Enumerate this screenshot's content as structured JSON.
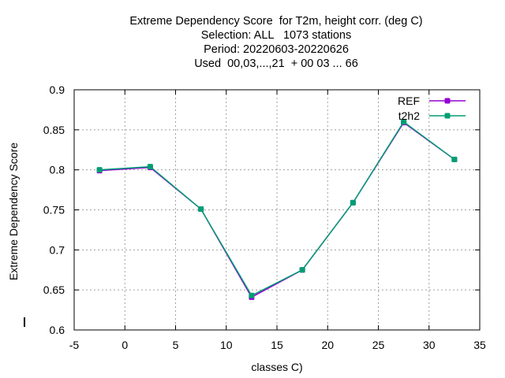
{
  "title_lines": [
    "Extreme Dependency Score  for T2m, height corr. (deg C)",
    "Selection: ALL   1073 stations",
    "Period: 20220603-20220626",
    "Used  00,03,...,21  + 00 03 ... 66"
  ],
  "chart_data": {
    "type": "line",
    "xlabel": "classes C)",
    "ylabel": "Extreme Dependency Score",
    "xlim": [
      -5,
      35
    ],
    "ylim": [
      0.6,
      0.9
    ],
    "xticks": [
      -5,
      0,
      5,
      10,
      15,
      20,
      25,
      30,
      35
    ],
    "yticks": [
      0.6,
      0.65,
      0.7,
      0.75,
      0.8,
      0.85,
      0.9
    ],
    "xtick_labels": [
      "-5",
      "0",
      "5",
      "10",
      "15",
      "20",
      "25",
      "30",
      "35"
    ],
    "ytick_labels": [
      "0.6",
      "0.65",
      "0.7",
      "0.75",
      "0.8",
      "0.85",
      "0.9"
    ],
    "grid": true,
    "legend_position": "top-right",
    "x": [
      -2.5,
      2.5,
      7.5,
      12.5,
      17.5,
      22.5,
      27.5,
      32.5
    ],
    "series": [
      {
        "name": "REF",
        "color": "#9400d3",
        "values": [
          0.799,
          0.803,
          0.751,
          0.641,
          0.675,
          0.759,
          0.859,
          0.813
        ]
      },
      {
        "name": "t2h2",
        "color": "#009e73",
        "values": [
          0.8,
          0.804,
          0.751,
          0.643,
          0.675,
          0.759,
          0.86,
          0.813
        ]
      }
    ]
  }
}
